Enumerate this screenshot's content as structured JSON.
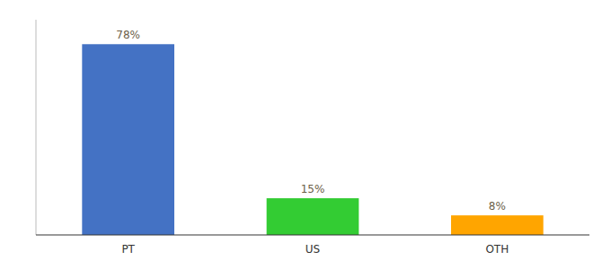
{
  "chart_data": {
    "type": "bar",
    "categories": [
      "PT",
      "US",
      "OTH"
    ],
    "values": [
      78,
      15,
      8
    ],
    "value_labels": [
      "78%",
      "15%",
      "8%"
    ],
    "colors": [
      "#4472C4",
      "#33CC33",
      "#FFA500"
    ],
    "ylim": [
      0,
      88
    ],
    "data_labels": true,
    "tick_labels": "x",
    "grid": false
  }
}
